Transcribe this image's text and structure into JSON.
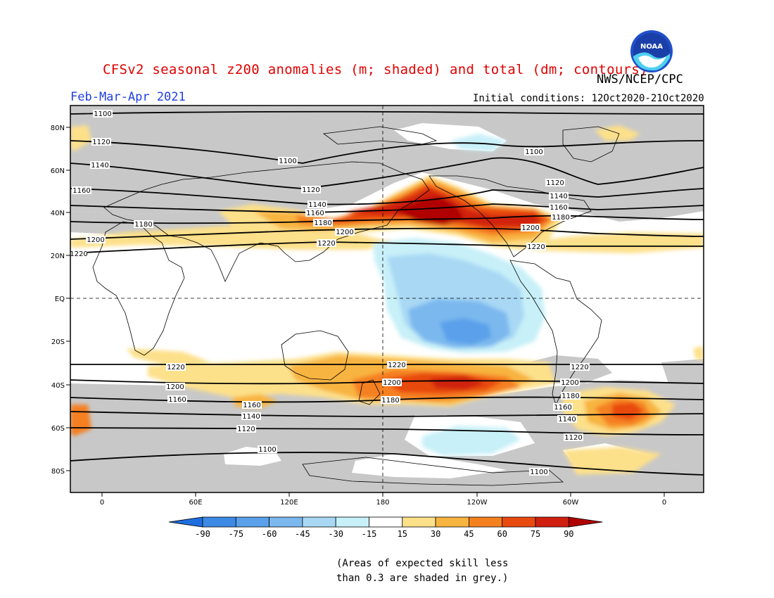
{
  "header": {
    "title": "CFSv2 seasonal z200 anomalies (m; shaded) and total (dm; contours)",
    "agency": "NWS/NCEP/CPC",
    "period": "Feb-Mar-Apr 2021",
    "initial_conditions": "Initial conditions: 12Oct2020-21Oct2020",
    "logo_text": "NOAA"
  },
  "map": {
    "lat_labels": [
      "80N",
      "60N",
      "40N",
      "20N",
      "EQ",
      "20S",
      "40S",
      "60S",
      "80S"
    ],
    "lon_labels": [
      "0",
      "60E",
      "120E",
      "180",
      "120W",
      "60W",
      "0"
    ],
    "contour_labels": [
      "1100",
      "1120",
      "1140",
      "1160",
      "1180",
      "1200",
      "1220"
    ]
  },
  "colorbar": {
    "ticks": [
      "-90",
      "-75",
      "-60",
      "-45",
      "-30",
      "-15",
      "15",
      "30",
      "45",
      "60",
      "75",
      "90"
    ],
    "colors": [
      "#1e6ee0",
      "#3c8ae6",
      "#5aa0ea",
      "#7ab8ee",
      "#a8d8f4",
      "#c8f0f8",
      "#ffffff",
      "#fde08a",
      "#f8b440",
      "#f58020",
      "#e84a10",
      "#d02010",
      "#b00000"
    ]
  },
  "colors": {
    "title": "#e00000",
    "period": "#2040e0",
    "skill_grey": "#c8c8c8"
  },
  "footnote": {
    "line1": "(Areas of expected skill less",
    "line2": "than 0.3 are shaded in grey.)"
  }
}
